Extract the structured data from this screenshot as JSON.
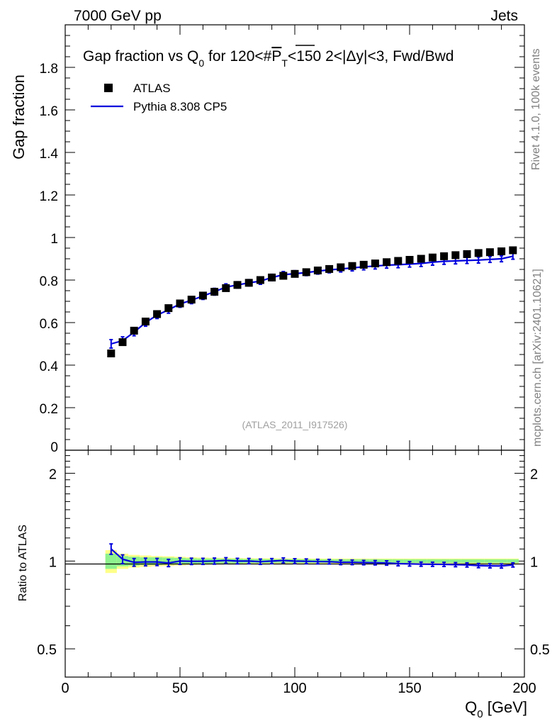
{
  "header": {
    "left": "7000 GeV pp",
    "right": "Jets",
    "side_top": "Rivet 4.1.0,  100k events",
    "side_bottom": "mcplots.cern.ch [arXiv:2401.10621]",
    "watermark": "(ATLAS_2011_I917526)"
  },
  "colors": {
    "mc": "#0000dd",
    "data": "#000000",
    "band_inner": "#8ef28e",
    "band_outer": "#ffff88"
  },
  "chart_data": [
    {
      "type": "scatter",
      "title": "Gap fraction vs Q0 for 120<#PT<150  2<|Δy|<3, Fwd/Bwd",
      "title_parts": {
        "a": "Gap fraction vs Q",
        "sub0": "0",
        "b": " for 120<#",
        "pbar": "P",
        "subT": "T",
        "c": "<150  2<|Δy|<3, Fwd/Bwd"
      },
      "ylabel": "Gap fraction",
      "xlim": [
        0,
        200
      ],
      "ylim": [
        0,
        2.0
      ],
      "yticks": [
        "0",
        "0.2",
        "0.4",
        "0.6",
        "0.8",
        "1",
        "1.2",
        "1.4",
        "1.6",
        "1.8"
      ],
      "legend": {
        "data": "ATLAS",
        "mc": "Pythia 8.308 CP5",
        "position": "top-left"
      },
      "x": [
        20,
        25,
        30,
        35,
        40,
        45,
        50,
        55,
        60,
        65,
        70,
        75,
        80,
        85,
        90,
        95,
        100,
        105,
        110,
        115,
        120,
        125,
        130,
        135,
        140,
        145,
        150,
        155,
        160,
        165,
        170,
        175,
        180,
        185,
        190,
        195
      ],
      "series": [
        {
          "name": "ATLAS",
          "values": [
            0.455,
            0.508,
            0.562,
            0.605,
            0.64,
            0.668,
            0.69,
            0.708,
            0.727,
            0.745,
            0.762,
            0.777,
            0.787,
            0.8,
            0.812,
            0.82,
            0.829,
            0.837,
            0.845,
            0.852,
            0.86,
            0.866,
            0.872,
            0.878,
            0.884,
            0.89,
            0.895,
            0.9,
            0.906,
            0.912,
            0.917,
            0.922,
            0.927,
            0.931,
            0.935,
            0.94
          ]
        },
        {
          "name": "Pythia 8.308 CP5",
          "values": [
            0.5,
            0.515,
            0.555,
            0.6,
            0.635,
            0.66,
            0.688,
            0.705,
            0.725,
            0.745,
            0.767,
            0.777,
            0.787,
            0.795,
            0.812,
            0.825,
            0.83,
            0.835,
            0.842,
            0.848,
            0.852,
            0.857,
            0.862,
            0.866,
            0.87,
            0.872,
            0.875,
            0.878,
            0.884,
            0.888,
            0.89,
            0.892,
            0.894,
            0.897,
            0.9,
            0.912
          ],
          "errors": [
            0.02,
            0.018,
            0.017,
            0.017,
            0.016,
            0.016,
            0.016,
            0.016,
            0.016,
            0.016,
            0.015,
            0.015,
            0.015,
            0.015,
            0.015,
            0.015,
            0.014,
            0.014,
            0.014,
            0.014,
            0.014,
            0.014,
            0.014,
            0.014,
            0.014,
            0.014,
            0.014,
            0.014,
            0.014,
            0.014,
            0.014,
            0.014,
            0.014,
            0.014,
            0.014,
            0.014
          ]
        }
      ]
    },
    {
      "type": "line",
      "ylabel": "Ratio to ATLAS",
      "xlabel": "Q0 [GeV]",
      "xlabel_parts": {
        "a": "Q",
        "sub": "0",
        "b": " [GeV]"
      },
      "xlim": [
        0,
        200
      ],
      "ylim": [
        0.4,
        2.4
      ],
      "yscale": "log",
      "yticks": [
        "0.5",
        "1",
        "2"
      ],
      "xticks": [
        "0",
        "50",
        "100",
        "150",
        "200"
      ],
      "x": [
        20,
        25,
        30,
        35,
        40,
        45,
        50,
        55,
        60,
        65,
        70,
        75,
        80,
        85,
        90,
        95,
        100,
        105,
        110,
        115,
        120,
        125,
        130,
        135,
        140,
        145,
        150,
        155,
        160,
        165,
        170,
        175,
        180,
        185,
        190,
        195
      ],
      "values": [
        1.1,
        1.015,
        0.99,
        0.993,
        0.993,
        0.985,
        1.0,
        0.998,
        0.998,
        1.0,
        1.005,
        1.0,
        1.0,
        0.995,
        1.0,
        1.005,
        1.0,
        0.998,
        0.996,
        0.995,
        0.99,
        0.99,
        0.988,
        0.987,
        0.985,
        0.98,
        0.978,
        0.976,
        0.975,
        0.974,
        0.972,
        0.97,
        0.965,
        0.963,
        0.962,
        0.97
      ],
      "errors": [
        0.045,
        0.035,
        0.03,
        0.03,
        0.028,
        0.028,
        0.026,
        0.025,
        0.024,
        0.024,
        0.022,
        0.022,
        0.021,
        0.021,
        0.02,
        0.02,
        0.019,
        0.019,
        0.018,
        0.018,
        0.018,
        0.018,
        0.017,
        0.017,
        0.017,
        0.017,
        0.017,
        0.016,
        0.016,
        0.016,
        0.016,
        0.016,
        0.016,
        0.016,
        0.016,
        0.016
      ],
      "band_inner": [
        0.06,
        0.04,
        0.035,
        0.03,
        0.03,
        0.028,
        0.025,
        0.022,
        0.02,
        0.02,
        0.018,
        0.018,
        0.016,
        0.016,
        0.015,
        0.015,
        0.015,
        0.014,
        0.014,
        0.014,
        0.014,
        0.014,
        0.014,
        0.014,
        0.014,
        0.014,
        0.014,
        0.014,
        0.014,
        0.014,
        0.014,
        0.014,
        0.014,
        0.014,
        0.014,
        0.014
      ],
      "band_outer": [
        0.09,
        0.06,
        0.05,
        0.045,
        0.04,
        0.038,
        0.034,
        0.03,
        0.028,
        0.026,
        0.025,
        0.024,
        0.023,
        0.022,
        0.022,
        0.021,
        0.021,
        0.02,
        0.02,
        0.02,
        0.02,
        0.02,
        0.02,
        0.02,
        0.02,
        0.02,
        0.02,
        0.02,
        0.02,
        0.02,
        0.02,
        0.02,
        0.02,
        0.02,
        0.02,
        0.02
      ]
    }
  ]
}
